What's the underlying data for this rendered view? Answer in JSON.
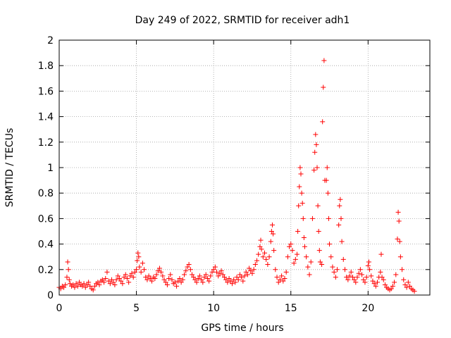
{
  "chart_data": {
    "type": "scatter",
    "title": "Day 249 of 2022, SRMTID for receiver adh1",
    "xlabel": "GPS time / hours",
    "ylabel": "SRMTID / TECUs",
    "xlim": [
      0,
      24
    ],
    "ylim": [
      0,
      2
    ],
    "xticks": [
      0,
      5,
      10,
      15,
      20
    ],
    "xtick_labels": [
      "0",
      "5",
      "10",
      "15",
      "20"
    ],
    "yticks": [
      0,
      0.2,
      0.4,
      0.6,
      0.8,
      1,
      1.2,
      1.4,
      1.6,
      1.8,
      2
    ],
    "ytick_labels": [
      "0",
      "0.2",
      "0.4",
      "0.6",
      "0.8",
      "1",
      "1.2",
      "1.4",
      "1.6",
      "1.8",
      "2"
    ],
    "grid": true,
    "marker": "+",
    "color": "#ff0000",
    "series": [
      {
        "name": "adh1",
        "points": [
          [
            0.0,
            0.06
          ],
          [
            0.1,
            0.05
          ],
          [
            0.2,
            0.07
          ],
          [
            0.3,
            0.06
          ],
          [
            0.4,
            0.08
          ],
          [
            0.5,
            0.14
          ],
          [
            0.55,
            0.26
          ],
          [
            0.6,
            0.2
          ],
          [
            0.65,
            0.12
          ],
          [
            0.7,
            0.09
          ],
          [
            0.8,
            0.07
          ],
          [
            0.9,
            0.08
          ],
          [
            1.0,
            0.06
          ],
          [
            1.1,
            0.09
          ],
          [
            1.2,
            0.07
          ],
          [
            1.3,
            0.1
          ],
          [
            1.4,
            0.08
          ],
          [
            1.5,
            0.07
          ],
          [
            1.6,
            0.09
          ],
          [
            1.7,
            0.06
          ],
          [
            1.8,
            0.08
          ],
          [
            1.9,
            0.1
          ],
          [
            2.0,
            0.07
          ],
          [
            2.1,
            0.05
          ],
          [
            2.2,
            0.04
          ],
          [
            2.3,
            0.07
          ],
          [
            2.4,
            0.09
          ],
          [
            2.5,
            0.1
          ],
          [
            2.6,
            0.08
          ],
          [
            2.7,
            0.11
          ],
          [
            2.8,
            0.12
          ],
          [
            2.9,
            0.1
          ],
          [
            3.0,
            0.13
          ],
          [
            3.1,
            0.18
          ],
          [
            3.2,
            0.11
          ],
          [
            3.3,
            0.09
          ],
          [
            3.4,
            0.12
          ],
          [
            3.5,
            0.1
          ],
          [
            3.6,
            0.08
          ],
          [
            3.7,
            0.12
          ],
          [
            3.8,
            0.15
          ],
          [
            3.9,
            0.13
          ],
          [
            4.0,
            0.11
          ],
          [
            4.1,
            0.09
          ],
          [
            4.2,
            0.14
          ],
          [
            4.3,
            0.16
          ],
          [
            4.4,
            0.13
          ],
          [
            4.5,
            0.1
          ],
          [
            4.6,
            0.15
          ],
          [
            4.7,
            0.17
          ],
          [
            4.8,
            0.14
          ],
          [
            4.9,
            0.18
          ],
          [
            5.0,
            0.2
          ],
          [
            5.05,
            0.27
          ],
          [
            5.1,
            0.33
          ],
          [
            5.15,
            0.3
          ],
          [
            5.2,
            0.22
          ],
          [
            5.3,
            0.18
          ],
          [
            5.4,
            0.25
          ],
          [
            5.5,
            0.2
          ],
          [
            5.6,
            0.14
          ],
          [
            5.7,
            0.12
          ],
          [
            5.8,
            0.15
          ],
          [
            5.9,
            0.13
          ],
          [
            6.0,
            0.11
          ],
          [
            6.1,
            0.14
          ],
          [
            6.2,
            0.13
          ],
          [
            6.3,
            0.16
          ],
          [
            6.4,
            0.19
          ],
          [
            6.5,
            0.21
          ],
          [
            6.6,
            0.18
          ],
          [
            6.7,
            0.15
          ],
          [
            6.8,
            0.12
          ],
          [
            6.9,
            0.1
          ],
          [
            7.0,
            0.08
          ],
          [
            7.1,
            0.13
          ],
          [
            7.2,
            0.16
          ],
          [
            7.3,
            0.12
          ],
          [
            7.4,
            0.09
          ],
          [
            7.5,
            0.1
          ],
          [
            7.6,
            0.07
          ],
          [
            7.7,
            0.11
          ],
          [
            7.8,
            0.13
          ],
          [
            7.9,
            0.1
          ],
          [
            8.0,
            0.12
          ],
          [
            8.1,
            0.16
          ],
          [
            8.2,
            0.19
          ],
          [
            8.3,
            0.22
          ],
          [
            8.4,
            0.24
          ],
          [
            8.5,
            0.2
          ],
          [
            8.6,
            0.16
          ],
          [
            8.7,
            0.14
          ],
          [
            8.8,
            0.12
          ],
          [
            8.9,
            0.1
          ],
          [
            9.0,
            0.13
          ],
          [
            9.1,
            0.15
          ],
          [
            9.2,
            0.12
          ],
          [
            9.3,
            0.1
          ],
          [
            9.4,
            0.14
          ],
          [
            9.5,
            0.16
          ],
          [
            9.6,
            0.13
          ],
          [
            9.7,
            0.11
          ],
          [
            9.8,
            0.15
          ],
          [
            9.9,
            0.18
          ],
          [
            10.0,
            0.2
          ],
          [
            10.1,
            0.22
          ],
          [
            10.2,
            0.18
          ],
          [
            10.3,
            0.15
          ],
          [
            10.4,
            0.17
          ],
          [
            10.5,
            0.19
          ],
          [
            10.6,
            0.16
          ],
          [
            10.7,
            0.14
          ],
          [
            10.8,
            0.12
          ],
          [
            10.9,
            0.1
          ],
          [
            11.0,
            0.13
          ],
          [
            11.1,
            0.11
          ],
          [
            11.2,
            0.09
          ],
          [
            11.3,
            0.12
          ],
          [
            11.4,
            0.1
          ],
          [
            11.5,
            0.14
          ],
          [
            11.6,
            0.12
          ],
          [
            11.7,
            0.16
          ],
          [
            11.8,
            0.14
          ],
          [
            11.9,
            0.11
          ],
          [
            12.0,
            0.15
          ],
          [
            12.1,
            0.18
          ],
          [
            12.2,
            0.16
          ],
          [
            12.3,
            0.21
          ],
          [
            12.4,
            0.19
          ],
          [
            12.5,
            0.17
          ],
          [
            12.6,
            0.2
          ],
          [
            12.7,
            0.24
          ],
          [
            12.8,
            0.27
          ],
          [
            12.9,
            0.32
          ],
          [
            13.0,
            0.38
          ],
          [
            13.05,
            0.43
          ],
          [
            13.1,
            0.36
          ],
          [
            13.2,
            0.3
          ],
          [
            13.3,
            0.33
          ],
          [
            13.4,
            0.28
          ],
          [
            13.5,
            0.24
          ],
          [
            13.6,
            0.3
          ],
          [
            13.7,
            0.42
          ],
          [
            13.75,
            0.5
          ],
          [
            13.8,
            0.55
          ],
          [
            13.85,
            0.48
          ],
          [
            13.9,
            0.35
          ],
          [
            14.0,
            0.2
          ],
          [
            14.1,
            0.14
          ],
          [
            14.2,
            0.1
          ],
          [
            14.3,
            0.12
          ],
          [
            14.4,
            0.15
          ],
          [
            14.5,
            0.11
          ],
          [
            14.6,
            0.13
          ],
          [
            14.7,
            0.18
          ],
          [
            14.8,
            0.3
          ],
          [
            14.9,
            0.38
          ],
          [
            15.0,
            0.4
          ],
          [
            15.1,
            0.35
          ],
          [
            15.2,
            0.25
          ],
          [
            15.3,
            0.28
          ],
          [
            15.4,
            0.32
          ],
          [
            15.45,
            0.5
          ],
          [
            15.5,
            0.7
          ],
          [
            15.55,
            0.85
          ],
          [
            15.6,
            1.0
          ],
          [
            15.65,
            0.95
          ],
          [
            15.7,
            0.8
          ],
          [
            15.75,
            0.72
          ],
          [
            15.8,
            0.6
          ],
          [
            15.85,
            0.45
          ],
          [
            15.9,
            0.38
          ],
          [
            16.0,
            0.3
          ],
          [
            16.1,
            0.22
          ],
          [
            16.2,
            0.16
          ],
          [
            16.3,
            0.26
          ],
          [
            16.4,
            0.6
          ],
          [
            16.5,
            0.98
          ],
          [
            16.55,
            1.12
          ],
          [
            16.6,
            1.26
          ],
          [
            16.65,
            1.18
          ],
          [
            16.7,
            1.0
          ],
          [
            16.75,
            0.7
          ],
          [
            16.8,
            0.5
          ],
          [
            16.85,
            0.35
          ],
          [
            16.9,
            0.26
          ],
          [
            17.0,
            0.24
          ],
          [
            17.05,
            1.36
          ],
          [
            17.1,
            1.63
          ],
          [
            17.15,
            1.84
          ],
          [
            17.2,
            0.9
          ],
          [
            17.3,
            0.9
          ],
          [
            17.35,
            1.0
          ],
          [
            17.4,
            0.8
          ],
          [
            17.45,
            0.6
          ],
          [
            17.5,
            0.4
          ],
          [
            17.6,
            0.3
          ],
          [
            17.7,
            0.22
          ],
          [
            17.8,
            0.18
          ],
          [
            17.9,
            0.14
          ],
          [
            18.0,
            0.2
          ],
          [
            18.1,
            0.55
          ],
          [
            18.15,
            0.7
          ],
          [
            18.2,
            0.75
          ],
          [
            18.25,
            0.6
          ],
          [
            18.3,
            0.42
          ],
          [
            18.4,
            0.28
          ],
          [
            18.5,
            0.2
          ],
          [
            18.6,
            0.14
          ],
          [
            18.7,
            0.12
          ],
          [
            18.8,
            0.15
          ],
          [
            18.9,
            0.18
          ],
          [
            19.0,
            0.14
          ],
          [
            19.1,
            0.12
          ],
          [
            19.2,
            0.1
          ],
          [
            19.3,
            0.14
          ],
          [
            19.4,
            0.17
          ],
          [
            19.5,
            0.2
          ],
          [
            19.6,
            0.16
          ],
          [
            19.7,
            0.12
          ],
          [
            19.8,
            0.1
          ],
          [
            19.9,
            0.14
          ],
          [
            20.0,
            0.23
          ],
          [
            20.05,
            0.26
          ],
          [
            20.1,
            0.2
          ],
          [
            20.2,
            0.15
          ],
          [
            20.3,
            0.11
          ],
          [
            20.4,
            0.09
          ],
          [
            20.5,
            0.07
          ],
          [
            20.6,
            0.1
          ],
          [
            20.7,
            0.14
          ],
          [
            20.8,
            0.18
          ],
          [
            20.85,
            0.32
          ],
          [
            20.9,
            0.14
          ],
          [
            21.0,
            0.12
          ],
          [
            21.1,
            0.08
          ],
          [
            21.2,
            0.06
          ],
          [
            21.3,
            0.05
          ],
          [
            21.4,
            0.04
          ],
          [
            21.5,
            0.05
          ],
          [
            21.6,
            0.07
          ],
          [
            21.7,
            0.1
          ],
          [
            21.8,
            0.16
          ],
          [
            21.9,
            0.44
          ],
          [
            21.95,
            0.65
          ],
          [
            22.0,
            0.58
          ],
          [
            22.05,
            0.42
          ],
          [
            22.1,
            0.3
          ],
          [
            22.2,
            0.2
          ],
          [
            22.3,
            0.12
          ],
          [
            22.4,
            0.08
          ],
          [
            22.5,
            0.06
          ],
          [
            22.6,
            0.1
          ],
          [
            22.7,
            0.07
          ],
          [
            22.8,
            0.05
          ],
          [
            22.9,
            0.04
          ],
          [
            23.0,
            0.03
          ]
        ]
      }
    ]
  }
}
